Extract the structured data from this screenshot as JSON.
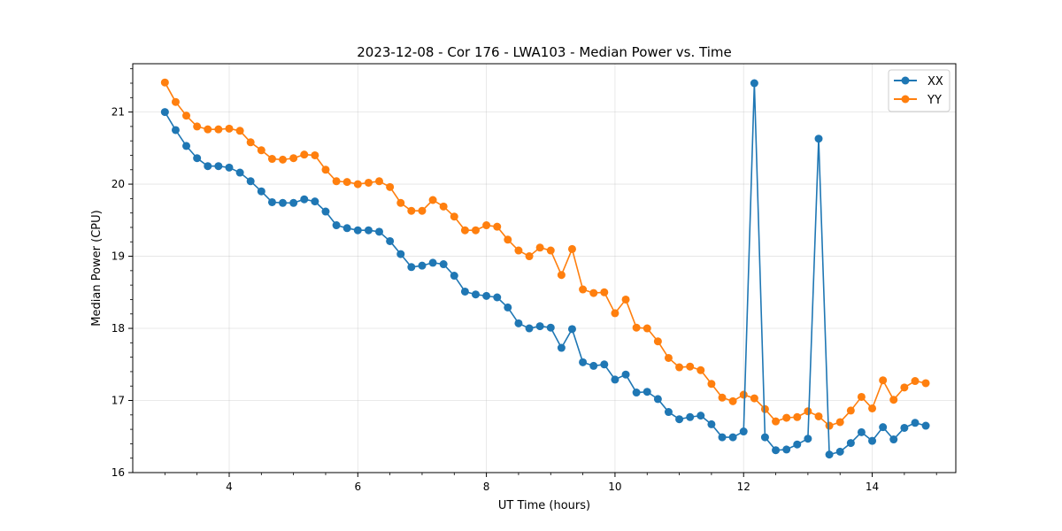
{
  "chart_data": {
    "type": "line",
    "title": "2023-12-08 - Cor 176 - LWA103 - Median Power vs. Time",
    "xlabel": "UT Time (hours)",
    "ylabel": "Median Power (CPU)",
    "xlim": [
      2.5,
      15.3
    ],
    "ylim": [
      16.0,
      21.67
    ],
    "xticks": [
      4,
      6,
      8,
      10,
      12,
      14
    ],
    "yticks": [
      16,
      17,
      18,
      19,
      20,
      21
    ],
    "grid": true,
    "legend_position": "top-right",
    "x": [
      3.0,
      3.167,
      3.333,
      3.5,
      3.667,
      3.833,
      4.0,
      4.167,
      4.333,
      4.5,
      4.667,
      4.833,
      5.0,
      5.167,
      5.333,
      5.5,
      5.667,
      5.833,
      6.0,
      6.167,
      6.333,
      6.5,
      6.667,
      6.833,
      7.0,
      7.167,
      7.333,
      7.5,
      7.667,
      7.833,
      8.0,
      8.167,
      8.333,
      8.5,
      8.667,
      8.833,
      9.0,
      9.167,
      9.333,
      9.5,
      9.667,
      9.833,
      10.0,
      10.167,
      10.333,
      10.5,
      10.667,
      10.833,
      11.0,
      11.167,
      11.333,
      11.5,
      11.667,
      11.833,
      12.0,
      12.167,
      12.333,
      12.5,
      12.667,
      12.833,
      13.0,
      13.167,
      13.333,
      13.5,
      13.667,
      13.833,
      14.0,
      14.167,
      14.333,
      14.5,
      14.667,
      14.833
    ],
    "series": [
      {
        "name": "XX",
        "color": "#1f77b4",
        "values": [
          21.0,
          20.75,
          20.53,
          20.36,
          20.25,
          20.25,
          20.23,
          20.16,
          20.04,
          19.9,
          19.75,
          19.74,
          19.74,
          19.79,
          19.76,
          19.62,
          19.43,
          19.39,
          19.36,
          19.36,
          19.34,
          19.21,
          19.03,
          18.85,
          18.87,
          18.91,
          18.89,
          18.73,
          18.51,
          18.47,
          18.45,
          18.43,
          18.29,
          18.07,
          18.0,
          18.03,
          18.01,
          17.73,
          17.99,
          17.53,
          17.48,
          17.5,
          17.29,
          17.36,
          17.11,
          17.12,
          17.02,
          16.84,
          16.74,
          16.77,
          16.79,
          16.67,
          16.49,
          16.49,
          16.57,
          21.4,
          16.49,
          16.31,
          16.32,
          16.39,
          16.47,
          20.63,
          16.25,
          16.29,
          16.41,
          16.56,
          16.44,
          16.63,
          16.46,
          16.62,
          16.69,
          16.65
        ]
      },
      {
        "name": "YY",
        "color": "#ff7f0e",
        "values": [
          21.41,
          21.14,
          20.95,
          20.8,
          20.76,
          20.76,
          20.77,
          20.74,
          20.58,
          20.47,
          20.35,
          20.34,
          20.36,
          20.41,
          20.4,
          20.2,
          20.04,
          20.03,
          20.0,
          20.02,
          20.04,
          19.96,
          19.74,
          19.63,
          19.63,
          19.78,
          19.69,
          19.55,
          19.36,
          19.36,
          19.43,
          19.41,
          19.23,
          19.08,
          19.0,
          19.12,
          19.08,
          18.74,
          19.1,
          18.54,
          18.49,
          18.5,
          18.21,
          18.4,
          18.01,
          18.0,
          17.82,
          17.59,
          17.46,
          17.47,
          17.42,
          17.23,
          17.04,
          16.99,
          17.08,
          17.03,
          16.88,
          16.71,
          16.76,
          16.77,
          16.85,
          16.78,
          16.65,
          16.7,
          16.86,
          17.05,
          16.89,
          17.28,
          17.01,
          17.18,
          17.27,
          17.24
        ]
      }
    ]
  }
}
